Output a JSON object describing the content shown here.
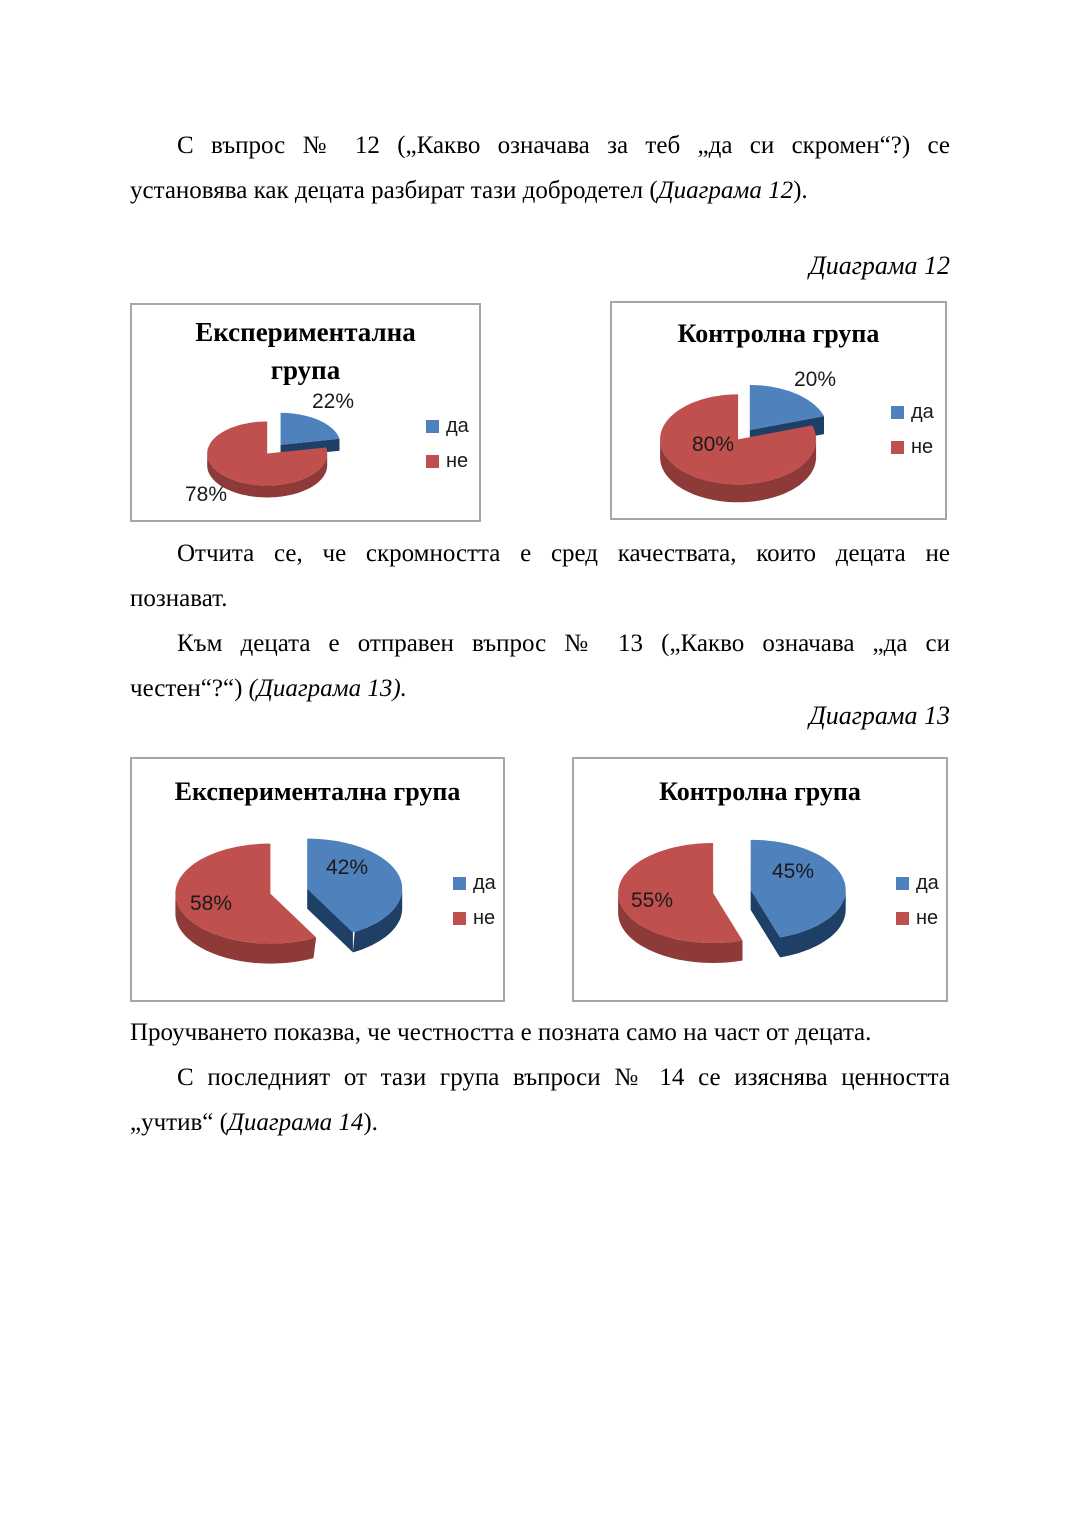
{
  "document": {
    "paragraphs": [
      {
        "indent": true,
        "lines": [
          [
            {
              "t": "С въпрос № 12 („Какво означава за теб „да си скромен“?) се"
            }
          ],
          [
            {
              "t": "установява как децата разбират тази добродетел ("
            },
            {
              "t": "Диаграма 12",
              "i": true
            },
            {
              "t": ")."
            }
          ]
        ]
      },
      {
        "indent": true,
        "lines": [
          [
            {
              "t": "Отчита се, че скромността е сред качествата, които децата не"
            }
          ],
          [
            {
              "t": "познават."
            }
          ]
        ]
      },
      {
        "indent": true,
        "lines": [
          [
            {
              "t": "Към децата е отправен въпрос № 13 („Какво означава „да си"
            }
          ],
          [
            {
              "t": "честен“?“) "
            },
            {
              "t": "(Диаграма 13).",
              "i": true
            }
          ]
        ]
      },
      {
        "indent": false,
        "lines": [
          [
            {
              "t": "Проучването показва, че честността е позната само на част от децата."
            }
          ]
        ]
      },
      {
        "indent": true,
        "lines": [
          [
            {
              "t": "С последният от тази група въпроси № 14 се изяснява ценността"
            }
          ],
          [
            {
              "t": "„учтив“ ("
            },
            {
              "t": "Диаграма 14",
              "i": true
            },
            {
              "t": ")."
            }
          ]
        ]
      }
    ],
    "figure_labels": [
      "Диаграма 12",
      "Диаграма 13"
    ]
  },
  "chart_data": [
    {
      "type": "pie",
      "title": "Експериментална група",
      "title_lines": [
        "Експериментална",
        "група"
      ],
      "categories": [
        "да",
        "не"
      ],
      "values": [
        22,
        78
      ],
      "unit": "%",
      "data_labels": [
        "22%",
        "78%"
      ],
      "colors": [
        "#4f81bd",
        "#c0504d"
      ],
      "legend_position": "right",
      "style": "3d-exploded"
    },
    {
      "type": "pie",
      "title": "Контролна група",
      "title_lines": [
        "Контролна група"
      ],
      "categories": [
        "да",
        "не"
      ],
      "values": [
        20,
        80
      ],
      "unit": "%",
      "data_labels": [
        "20%",
        "80%"
      ],
      "colors": [
        "#4f81bd",
        "#c0504d"
      ],
      "legend_position": "right",
      "style": "3d-exploded"
    },
    {
      "type": "pie",
      "title": "Експериментална група",
      "title_lines": [
        "Експериментална група"
      ],
      "categories": [
        "да",
        "не"
      ],
      "values": [
        42,
        58
      ],
      "unit": "%",
      "data_labels": [
        "42%",
        "58%"
      ],
      "colors": [
        "#4f81bd",
        "#c0504d"
      ],
      "legend_position": "right",
      "style": "3d-exploded"
    },
    {
      "type": "pie",
      "title": "Контролна група",
      "title_lines": [
        "Контролна група"
      ],
      "categories": [
        "да",
        "не"
      ],
      "values": [
        45,
        55
      ],
      "unit": "%",
      "data_labels": [
        "45%",
        "55%"
      ],
      "colors": [
        "#4f81bd",
        "#c0504d"
      ],
      "legend_position": "right",
      "style": "3d-exploded"
    }
  ]
}
